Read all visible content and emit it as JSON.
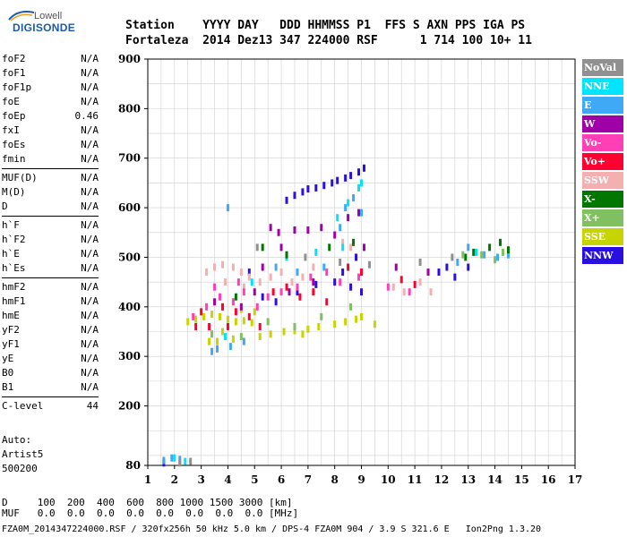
{
  "logo": {
    "line1": "Lowell",
    "line2": "DIGISONDE"
  },
  "header": {
    "row1": "Station    YYYY DAY   DDD HHMMSS P1  FFS S AXN PPS IGA PS",
    "row2": "Fortaleza  2014 Dez13 347 224000 RSF      1 714 100 10+ 11"
  },
  "params": {
    "group1": [
      [
        "foF2",
        "N/A"
      ],
      [
        "foF1",
        "N/A"
      ],
      [
        "foF1p",
        "N/A"
      ],
      [
        "foE",
        "N/A"
      ],
      [
        "foEp",
        "0.46"
      ],
      [
        "fxI",
        "N/A"
      ],
      [
        "foEs",
        "N/A"
      ],
      [
        "fmin",
        "N/A"
      ]
    ],
    "group2": [
      [
        "MUF(D)",
        "N/A"
      ],
      [
        "M(D)",
        "N/A"
      ],
      [
        "D",
        "N/A"
      ]
    ],
    "group3": [
      [
        "h`F",
        "N/A"
      ],
      [
        "h`F2",
        "N/A"
      ],
      [
        "h`E",
        "N/A"
      ],
      [
        "h`Es",
        "N/A"
      ]
    ],
    "group4": [
      [
        "hmF2",
        "N/A"
      ],
      [
        "hmF1",
        "N/A"
      ],
      [
        "hmE",
        "N/A"
      ],
      [
        "yF2",
        "N/A"
      ],
      [
        "yF1",
        "N/A"
      ],
      [
        "yE",
        "N/A"
      ],
      [
        "B0",
        "N/A"
      ],
      [
        "B1",
        "N/A"
      ]
    ],
    "group5": [
      [
        "C-level",
        "44"
      ]
    ]
  },
  "auto": {
    "line1": "Auto:",
    "line2": "Artist5",
    "line3": "500200"
  },
  "footer": {
    "row1": "D     100  200  400  600  800 1000 1500 3000 [km]",
    "row2": "MUF   0.0  0.0  0.0  0.0  0.0  0.0  0.0  0.0 [MHz]",
    "row3": "FZA0M_2014347224000.RSF / 320fx256h 50 kHz 5.0 km / DPS-4 FZA0M 904 / 3.9 S 321.6 E   Ion2Png 1.3.20"
  },
  "legend": [
    {
      "label": "NoVal",
      "color": "#909090"
    },
    {
      "label": "NNE",
      "color": "#00e5ff"
    },
    {
      "label": "E",
      "color": "#3fa9f5"
    },
    {
      "label": "W",
      "color": "#a000a8"
    },
    {
      "label": "Vo-",
      "color": "#ff3fb5"
    },
    {
      "label": "Vo+",
      "color": "#ff0030"
    },
    {
      "label": "SSW",
      "color": "#f4b0b0"
    },
    {
      "label": "X-",
      "color": "#007800"
    },
    {
      "label": "X+",
      "color": "#80c060"
    },
    {
      "label": "SSE",
      "color": "#c8d400"
    },
    {
      "label": "NNW",
      "color": "#2a10e0"
    }
  ],
  "chart_data": {
    "type": "scatter",
    "xlabel": "",
    "ylabel": "",
    "xlim": [
      1,
      17
    ],
    "ylim": [
      80,
      900
    ],
    "xticks": [
      1,
      2,
      3,
      4,
      5,
      6,
      7,
      8,
      9,
      10,
      11,
      12,
      13,
      14,
      15,
      16,
      17
    ],
    "yticks": [
      80,
      200,
      300,
      400,
      500,
      600,
      700,
      800,
      900
    ],
    "grid": true,
    "series": [
      {
        "name": "NNW",
        "color": "#2a10e0",
        "points": [
          [
            6.2,
            615
          ],
          [
            6.5,
            625
          ],
          [
            6.8,
            632
          ],
          [
            7.0,
            638
          ],
          [
            7.3,
            640
          ],
          [
            7.6,
            645
          ],
          [
            7.9,
            650
          ],
          [
            8.1,
            655
          ],
          [
            8.4,
            660
          ],
          [
            8.6,
            665
          ],
          [
            8.9,
            672
          ],
          [
            9.1,
            680
          ],
          [
            8.0,
            450
          ],
          [
            8.3,
            470
          ],
          [
            8.6,
            440
          ],
          [
            8.8,
            500
          ],
          [
            9.0,
            430
          ],
          [
            7.3,
            445
          ],
          [
            6.6,
            430
          ],
          [
            5.8,
            410
          ],
          [
            5.3,
            420
          ],
          [
            12.2,
            480
          ],
          [
            12.5,
            460
          ],
          [
            13.0,
            480
          ],
          [
            11.9,
            470
          ],
          [
            4.8,
            470
          ],
          [
            1.6,
            85
          ]
        ]
      },
      {
        "name": "SSE",
        "color": "#c8d400",
        "points": [
          [
            2.5,
            370
          ],
          [
            2.8,
            375
          ],
          [
            3.1,
            380
          ],
          [
            3.4,
            385
          ],
          [
            3.7,
            380
          ],
          [
            4.0,
            375
          ],
          [
            4.3,
            370
          ],
          [
            4.6,
            372
          ],
          [
            4.9,
            368
          ],
          [
            3.3,
            330
          ],
          [
            3.6,
            330
          ],
          [
            4.2,
            335
          ],
          [
            5.2,
            340
          ],
          [
            5.6,
            345
          ],
          [
            6.1,
            350
          ],
          [
            6.5,
            352
          ],
          [
            7.0,
            355
          ],
          [
            7.4,
            360
          ],
          [
            8.0,
            365
          ],
          [
            8.4,
            370
          ],
          [
            8.8,
            375
          ],
          [
            9.0,
            380
          ],
          [
            4.5,
            395
          ],
          [
            5.0,
            390
          ],
          [
            3.8,
            350
          ],
          [
            9.5,
            365
          ],
          [
            6.8,
            345
          ]
        ]
      },
      {
        "name": "SSW",
        "color": "#f4b0b0",
        "points": [
          [
            3.2,
            470
          ],
          [
            3.5,
            480
          ],
          [
            3.8,
            485
          ],
          [
            4.2,
            480
          ],
          [
            4.5,
            470
          ],
          [
            4.8,
            460
          ],
          [
            5.2,
            450
          ],
          [
            5.6,
            460
          ],
          [
            6.0,
            470
          ],
          [
            6.4,
            450
          ],
          [
            6.8,
            460
          ],
          [
            7.2,
            480
          ],
          [
            10.2,
            440
          ],
          [
            10.6,
            430
          ],
          [
            11.2,
            450
          ],
          [
            11.6,
            430
          ],
          [
            8.3,
            530
          ],
          [
            8.6,
            520
          ],
          [
            3.9,
            450
          ],
          [
            4.6,
            440
          ]
        ]
      },
      {
        "name": "Vo+",
        "color": "#ff0030",
        "points": [
          [
            2.8,
            360
          ],
          [
            3.3,
            360
          ],
          [
            3.8,
            400
          ],
          [
            4.3,
            390
          ],
          [
            4.8,
            380
          ],
          [
            5.2,
            360
          ],
          [
            5.7,
            430
          ],
          [
            6.2,
            440
          ],
          [
            6.7,
            420
          ],
          [
            7.2,
            430
          ],
          [
            7.7,
            410
          ],
          [
            8.5,
            480
          ],
          [
            9.0,
            470
          ],
          [
            10.5,
            455
          ],
          [
            11.0,
            445
          ],
          [
            4.0,
            360
          ],
          [
            3.0,
            390
          ]
        ]
      },
      {
        "name": "Vo-",
        "color": "#ff3fb5",
        "points": [
          [
            2.7,
            380
          ],
          [
            3.2,
            400
          ],
          [
            3.7,
            420
          ],
          [
            4.2,
            410
          ],
          [
            4.6,
            430
          ],
          [
            5.1,
            400
          ],
          [
            5.5,
            420
          ],
          [
            6.0,
            430
          ],
          [
            6.6,
            440
          ],
          [
            7.1,
            460
          ],
          [
            7.7,
            470
          ],
          [
            8.2,
            450
          ],
          [
            8.9,
            460
          ],
          [
            10.0,
            440
          ],
          [
            10.8,
            430
          ],
          [
            4.4,
            450
          ],
          [
            3.5,
            440
          ]
        ]
      },
      {
        "name": "W",
        "color": "#a000a8",
        "points": [
          [
            5.6,
            560
          ],
          [
            5.9,
            550
          ],
          [
            6.5,
            555
          ],
          [
            7.0,
            555
          ],
          [
            7.5,
            560
          ],
          [
            8.0,
            545
          ],
          [
            8.5,
            580
          ],
          [
            8.9,
            590
          ],
          [
            3.5,
            410
          ],
          [
            4.5,
            400
          ],
          [
            5.0,
            430
          ],
          [
            6.3,
            430
          ],
          [
            7.2,
            450
          ],
          [
            9.1,
            520
          ],
          [
            10.3,
            480
          ],
          [
            11.5,
            470
          ],
          [
            6.0,
            520
          ],
          [
            5.3,
            480
          ]
        ]
      },
      {
        "name": "E",
        "color": "#3fa9f5",
        "points": [
          [
            1.6,
            90
          ],
          [
            1.9,
            95
          ],
          [
            2.2,
            92
          ],
          [
            3.4,
            310
          ],
          [
            3.6,
            315
          ],
          [
            4.1,
            320
          ],
          [
            4.6,
            330
          ],
          [
            8.4,
            600
          ],
          [
            8.7,
            620
          ],
          [
            8.2,
            560
          ],
          [
            9.0,
            590
          ],
          [
            4.0,
            600
          ],
          [
            13.0,
            520
          ],
          [
            13.6,
            505
          ],
          [
            14.1,
            500
          ],
          [
            14.5,
            505
          ],
          [
            12.6,
            490
          ],
          [
            5.8,
            480
          ],
          [
            6.6,
            470
          ],
          [
            7.6,
            480
          ]
        ]
      },
      {
        "name": "NNE",
        "color": "#00e5ff",
        "points": [
          [
            2.0,
            95
          ],
          [
            2.4,
            88
          ],
          [
            8.1,
            580
          ],
          [
            8.5,
            610
          ],
          [
            8.9,
            640
          ],
          [
            9.0,
            650
          ],
          [
            8.3,
            520
          ],
          [
            6.2,
            500
          ],
          [
            7.3,
            510
          ],
          [
            4.9,
            450
          ],
          [
            3.9,
            340
          ],
          [
            13.3,
            510
          ]
        ]
      },
      {
        "name": "X-",
        "color": "#007800",
        "points": [
          [
            13.2,
            510
          ],
          [
            13.8,
            520
          ],
          [
            14.2,
            530
          ],
          [
            14.5,
            515
          ],
          [
            12.9,
            500
          ],
          [
            5.3,
            520
          ],
          [
            6.2,
            505
          ],
          [
            7.8,
            520
          ],
          [
            8.7,
            530
          ],
          [
            4.3,
            420
          ]
        ]
      },
      {
        "name": "X+",
        "color": "#80c060",
        "points": [
          [
            13.5,
            505
          ],
          [
            14.0,
            495
          ],
          [
            14.3,
            510
          ],
          [
            12.8,
            505
          ],
          [
            4.5,
            340
          ],
          [
            5.5,
            370
          ],
          [
            6.5,
            360
          ],
          [
            7.5,
            380
          ],
          [
            8.6,
            400
          ],
          [
            3.4,
            345
          ]
        ]
      },
      {
        "name": "NoVal",
        "color": "#909090",
        "points": [
          [
            2.2,
            85
          ],
          [
            2.6,
            88
          ],
          [
            5.1,
            520
          ],
          [
            6.9,
            500
          ],
          [
            8.2,
            490
          ],
          [
            9.3,
            485
          ],
          [
            11.2,
            490
          ],
          [
            12.4,
            500
          ]
        ]
      }
    ]
  }
}
